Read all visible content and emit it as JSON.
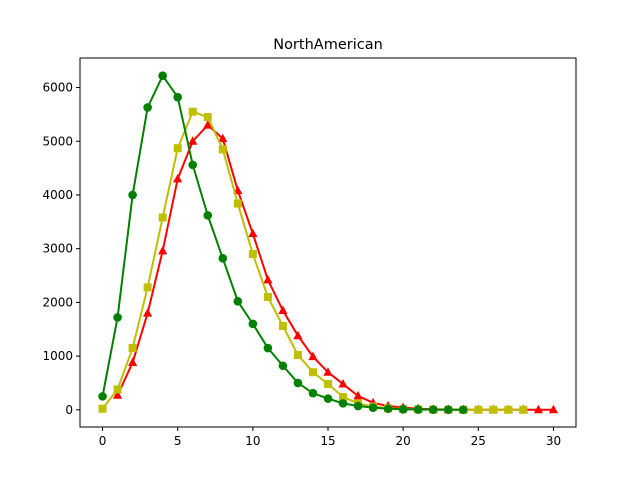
{
  "chart_data": {
    "type": "line",
    "title": "NorthAmerican",
    "xlabel": "",
    "ylabel": "",
    "xlim": [
      -1.5,
      31.5
    ],
    "ylim": [
      -320,
      6550
    ],
    "xticks": [
      0,
      5,
      10,
      15,
      20,
      25,
      30
    ],
    "yticks": [
      0,
      1000,
      2000,
      3000,
      4000,
      5000,
      6000
    ],
    "grid": false,
    "series": [
      {
        "color": "#ff0000",
        "marker": "triangle",
        "x": [
          1,
          2,
          3,
          4,
          5,
          6,
          7,
          8,
          9,
          10,
          11,
          12,
          13,
          14,
          15,
          16,
          17,
          18,
          19,
          20,
          21,
          22,
          23,
          24,
          25,
          26,
          27,
          28,
          29,
          30
        ],
        "y": [
          270,
          880,
          1800,
          2960,
          4300,
          5000,
          5300,
          5050,
          4080,
          3280,
          2420,
          1850,
          1380,
          990,
          700,
          480,
          260,
          130,
          70,
          40,
          20,
          10,
          5,
          3,
          2,
          1,
          1,
          1,
          1,
          1
        ]
      },
      {
        "color": "#bfbf00",
        "marker": "square",
        "x": [
          0,
          1,
          2,
          3,
          4,
          5,
          6,
          7,
          8,
          9,
          10,
          11,
          12,
          13,
          14,
          15,
          16,
          17,
          18,
          19,
          20,
          21,
          22,
          23,
          24,
          25,
          26,
          27,
          28
        ],
        "y": [
          20,
          380,
          1150,
          2280,
          3580,
          4870,
          5550,
          5450,
          4850,
          3840,
          2900,
          2100,
          1560,
          1020,
          700,
          480,
          240,
          120,
          60,
          30,
          15,
          8,
          4,
          2,
          1,
          1,
          1,
          1,
          1
        ]
      },
      {
        "color": "#008000",
        "marker": "circle",
        "x": [
          0,
          1,
          2,
          3,
          4,
          5,
          6,
          7,
          8,
          9,
          10,
          11,
          12,
          13,
          14,
          15,
          16,
          17,
          18,
          19,
          20,
          21,
          22,
          23,
          24
        ],
        "y": [
          250,
          1720,
          4000,
          5630,
          6220,
          5820,
          4560,
          3620,
          2820,
          2020,
          1600,
          1150,
          820,
          500,
          310,
          210,
          120,
          70,
          40,
          20,
          10,
          5,
          3,
          2,
          1
        ]
      }
    ]
  }
}
